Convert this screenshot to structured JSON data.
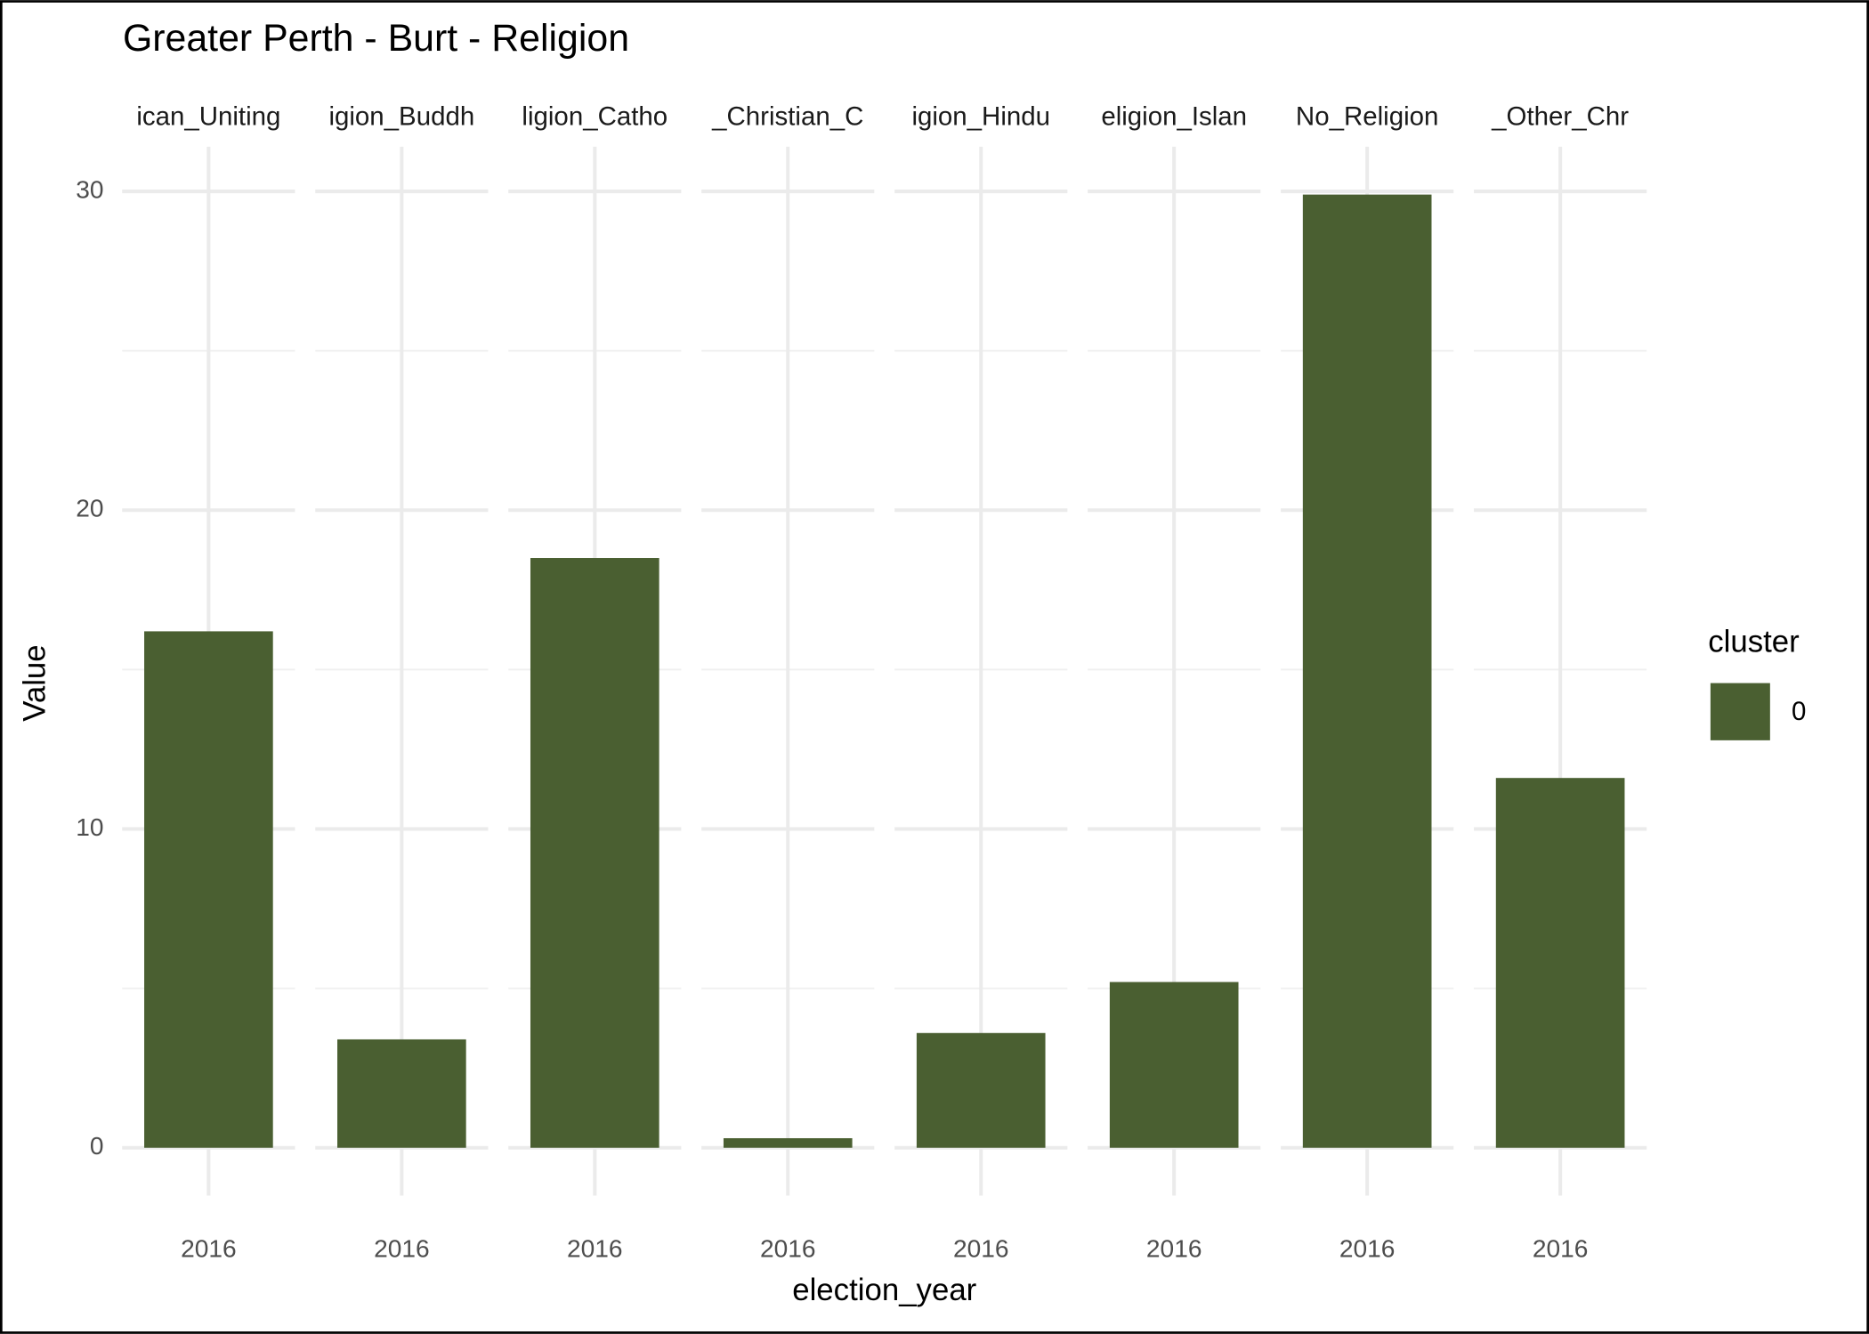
{
  "chart_data": {
    "type": "bar",
    "title": "Greater Perth - Burt - Religion",
    "x_label": "election_year",
    "y_label": "Value",
    "facets": [
      "ican_Uniting",
      "igion_Buddh",
      "ligion_Catho",
      "_Christian_C",
      "igion_Hindu",
      "eligion_Islan",
      "No_Religion",
      "_Other_Chr"
    ],
    "categories": [
      "2016",
      "2016",
      "2016",
      "2016",
      "2016",
      "2016",
      "2016",
      "2016"
    ],
    "legend_title": "cluster",
    "legend_position": "right",
    "series": [
      {
        "name": "0",
        "color": "#4a5f31",
        "values": [
          16.2,
          3.4,
          18.5,
          0.3,
          3.6,
          5.2,
          29.9,
          11.6
        ]
      }
    ],
    "ylim": [
      -1.5,
      31.4
    ],
    "yticks": [
      0,
      10,
      20,
      30
    ],
    "minor_yticks": [
      5,
      15,
      25
    ],
    "grid": true
  }
}
